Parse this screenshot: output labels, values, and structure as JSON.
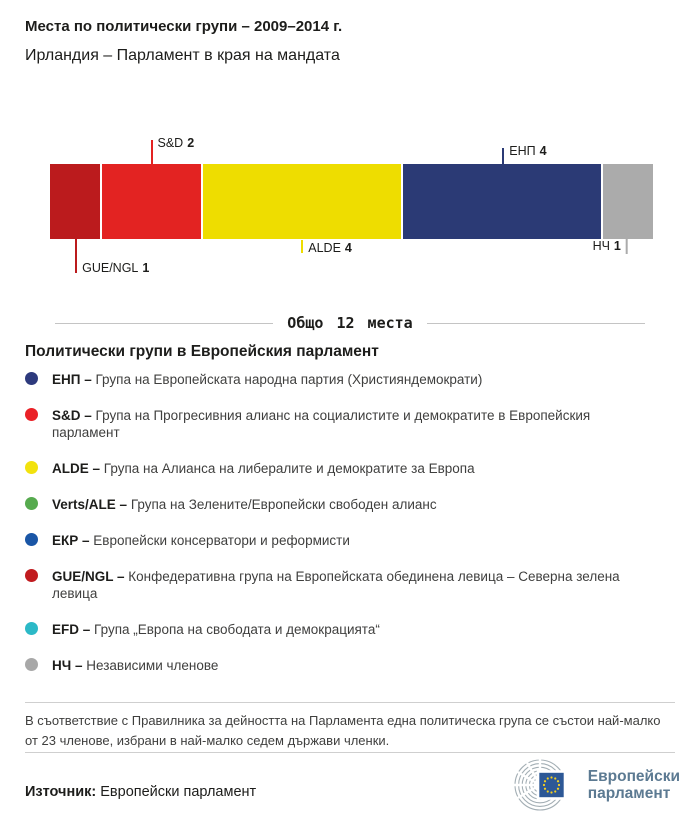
{
  "title": "Места по политически групи – 2009–2014 г.",
  "subtitle": "Ирландия – Парламент в края на мандата",
  "chart_data": {
    "type": "bar",
    "variant": "horizontal-stacked-seat-bar",
    "title": "Места по политически групи – 2009–2014 г.",
    "region": "Ирландия – Парламент в края на мандата",
    "total_seats": 12,
    "total_label": "Общо 12 места",
    "legend_position": "below",
    "segments": [
      {
        "group": "GUE/NGL",
        "seats": 1,
        "color": "#bb1b1d",
        "label_position": "below"
      },
      {
        "group": "S&D",
        "seats": 2,
        "color": "#e32322",
        "label_position": "above"
      },
      {
        "group": "ALDE",
        "seats": 4,
        "color": "#eedd00",
        "label_position": "below"
      },
      {
        "group": "ЕНП",
        "seats": 4,
        "color": "#2b3a75",
        "label_position": "above"
      },
      {
        "group": "НЧ",
        "seats": 1,
        "color": "#ababab",
        "label_position": "below-left-of-tick"
      }
    ]
  },
  "legend": {
    "heading": "Политически групи в Европейския парламент",
    "items": [
      {
        "abbr": "ЕНП –",
        "desc": "Група на Европейската народна партия (Християндемократи)",
        "color": "#2d3a7d"
      },
      {
        "abbr": "S&D –",
        "desc": "Група на Прогресивния алианс на социалистите и демократите в Европейския парламент",
        "color": "#ea2127"
      },
      {
        "abbr": "ALDE –",
        "desc": "Група на Алианса на либералите и демократите за Европа",
        "color": "#f2e20e"
      },
      {
        "abbr": "Verts/ALE –",
        "desc": "Група на Зелените/Европейски свободен алианс",
        "color": "#56aa4e"
      },
      {
        "abbr": "ЕКР –",
        "desc": "Европейски консерватори и реформисти",
        "color": "#1a56a6"
      },
      {
        "abbr": "GUE/NGL –",
        "desc": "Конфедеративна група на Европейската обединена левица – Северна зелена левица",
        "color": "#c11b1f"
      },
      {
        "abbr": "EFD –",
        "desc": "Група „Европа на свободата и демокрацията“",
        "color": "#2cb9c7"
      },
      {
        "abbr": "НЧ –",
        "desc": "Независими членове",
        "color": "#a8a8a8"
      }
    ]
  },
  "note": "В съответствие с Правилника за дейността на Парламента една политическа група се състои най-малко от 23 членове, избрани в най-малко седем държави членки.",
  "source": {
    "label": "Източник:",
    "value": "Европейски парламент"
  },
  "logo": {
    "line1": "Европейски",
    "line2": "парламент",
    "flag_blue": "#2d5896",
    "star_yellow": "#f5d020",
    "arc_gray": "#a3aeb4"
  }
}
